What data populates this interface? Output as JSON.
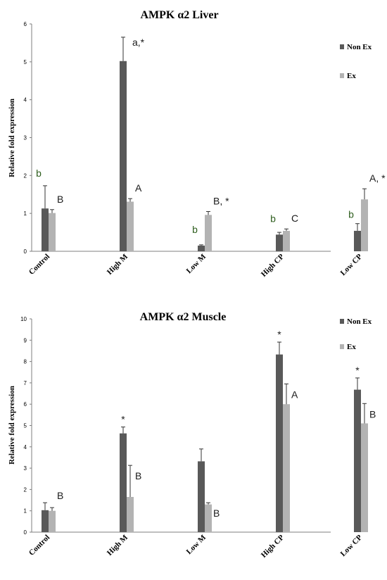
{
  "chart_data": [
    {
      "type": "bar",
      "title": "AMPK α2 Liver",
      "ylabel": "Relative fold expression",
      "ylim": [
        0,
        6
      ],
      "yticks": [
        "0",
        "1",
        "2",
        "3",
        "4",
        "5",
        "6"
      ],
      "categories": [
        "Control",
        "High M",
        "Low M",
        "High CP",
        "Low CP"
      ],
      "legend_position": "top-right",
      "series": [
        {
          "name": "Non Ex",
          "color": "#595959",
          "values": [
            1.13,
            5.02,
            0.15,
            0.44,
            0.54
          ],
          "errors": [
            0.6,
            0.63,
            0.02,
            0.06,
            0.19
          ]
        },
        {
          "name": "Ex",
          "color": "#b3b3b3",
          "values": [
            1.01,
            1.31,
            0.96,
            0.54,
            1.37
          ],
          "errors": [
            0.09,
            0.08,
            0.09,
            0.05,
            0.28
          ]
        }
      ],
      "annotations": [
        {
          "category": 0,
          "series": 0,
          "text": "b",
          "color": "#2e5e1e"
        },
        {
          "category": 0,
          "series": 1,
          "text": "B",
          "color": "#1a1a1a"
        },
        {
          "category": 1,
          "series": 0,
          "text": "a,*",
          "color": "#1a1a1a"
        },
        {
          "category": 1,
          "series": 1,
          "text": "A",
          "color": "#1a1a1a"
        },
        {
          "category": 2,
          "series": 0,
          "text": "b",
          "color": "#2e5e1e"
        },
        {
          "category": 2,
          "series": 1,
          "text": "B, *",
          "color": "#1a1a1a"
        },
        {
          "category": 3,
          "series": 0,
          "text": "b",
          "color": "#2e5e1e"
        },
        {
          "category": 3,
          "series": 1,
          "text": "C",
          "color": "#1a1a1a"
        },
        {
          "category": 4,
          "series": 0,
          "text": "b",
          "color": "#2e5e1e"
        },
        {
          "category": 4,
          "series": 1,
          "text": "A, *",
          "color": "#1a1a1a"
        }
      ]
    },
    {
      "type": "bar",
      "title": "AMPK α2 Muscle",
      "ylabel": "Relative fold expression",
      "ylim": [
        0,
        10
      ],
      "yticks": [
        "0",
        "1",
        "2",
        "3",
        "4",
        "5",
        "6",
        "7",
        "8",
        "9",
        "10"
      ],
      "categories": [
        "Control",
        "High M",
        "Low M",
        "High CP",
        "Low CP"
      ],
      "legend_position": "top-right",
      "series": [
        {
          "name": "Non Ex",
          "color": "#595959",
          "values": [
            1.03,
            4.63,
            3.32,
            8.33,
            6.68
          ],
          "errors": [
            0.35,
            0.3,
            0.58,
            0.58,
            0.55
          ]
        },
        {
          "name": "Ex",
          "color": "#b3b3b3",
          "values": [
            1.0,
            1.65,
            1.3,
            6.0,
            5.1
          ],
          "errors": [
            0.15,
            1.48,
            0.08,
            0.95,
            0.93
          ]
        }
      ],
      "annotations": [
        {
          "category": 0,
          "series": 1,
          "text": "B",
          "color": "#1a1a1a"
        },
        {
          "category": 1,
          "series": 0,
          "text": "*",
          "color": "#1a1a1a"
        },
        {
          "category": 1,
          "series": 1,
          "text": "B",
          "color": "#1a1a1a"
        },
        {
          "category": 2,
          "series": 1,
          "text": "B",
          "color": "#1a1a1a"
        },
        {
          "category": 3,
          "series": 0,
          "text": "*",
          "color": "#1a1a1a"
        },
        {
          "category": 3,
          "series": 1,
          "text": "A",
          "color": "#1a1a1a"
        },
        {
          "category": 4,
          "series": 0,
          "text": "*",
          "color": "#1a1a1a"
        },
        {
          "category": 4,
          "series": 1,
          "text": "B",
          "color": "#1a1a1a"
        }
      ]
    }
  ]
}
